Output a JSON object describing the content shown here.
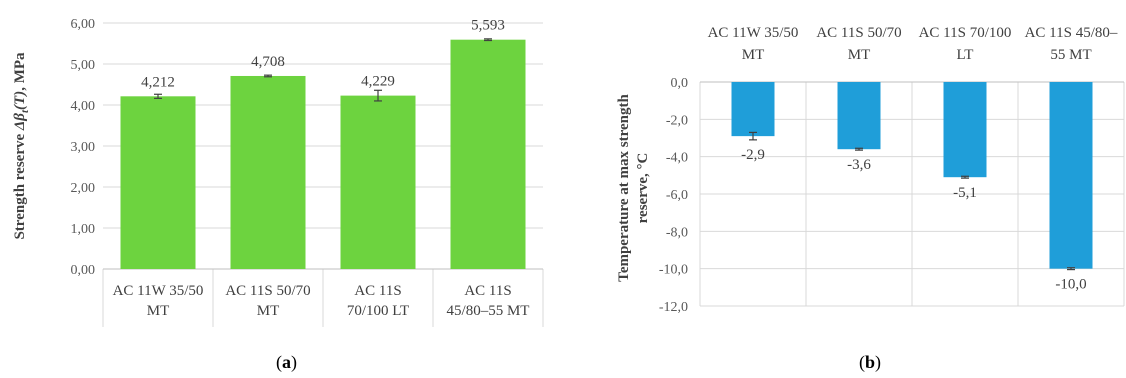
{
  "chart_data": [
    {
      "type": "bar",
      "panel_label": "a",
      "ylabel_pre": "Strength reserve ",
      "ylabel_sym": "Δβ",
      "ylabel_sub": "t",
      "ylabel_arg": "(T)",
      "ylabel_post": ", MPa",
      "categories": [
        [
          "AC 11W 35/50",
          "MT"
        ],
        [
          "AC 11S 50/70",
          "MT"
        ],
        [
          "AC 11S",
          "70/100 LT"
        ],
        [
          "AC 11S",
          "45/80–55 MT"
        ]
      ],
      "values": [
        4.212,
        4.708,
        4.229,
        5.593
      ],
      "value_labels": [
        "4,212",
        "4,708",
        "4,229",
        "5,593"
      ],
      "error": [
        0.05,
        0.02,
        0.13,
        0.02
      ],
      "ylim": [
        0,
        6
      ],
      "yticks": [
        "0,00",
        "1,00",
        "2,00",
        "3,00",
        "4,00",
        "5,00",
        "6,00"
      ],
      "color": "#6dd33f",
      "grid": true
    },
    {
      "type": "bar",
      "panel_label": "b",
      "ylabel": [
        "Temperature at max strength",
        "reserve, °C"
      ],
      "categories": [
        [
          "AC 11W 35/50",
          "MT"
        ],
        [
          "AC 11S 50/70",
          "MT"
        ],
        [
          "AC 11S 70/100",
          "LT"
        ],
        [
          "AC 11S 45/80–",
          "55 MT"
        ]
      ],
      "values": [
        -2.9,
        -3.6,
        -5.1,
        -10.0
      ],
      "value_labels": [
        "-2,9",
        "-3,6",
        "-5,1",
        "-10,0"
      ],
      "error": [
        0.2,
        0.05,
        0.05,
        0.05
      ],
      "ylim": [
        -12,
        0
      ],
      "yticks": [
        "0,0",
        "-2,0",
        "-4,0",
        "-6,0",
        "-8,0",
        "-10,0",
        "-12,0"
      ],
      "color": "#1f9ed9",
      "grid": true
    }
  ]
}
